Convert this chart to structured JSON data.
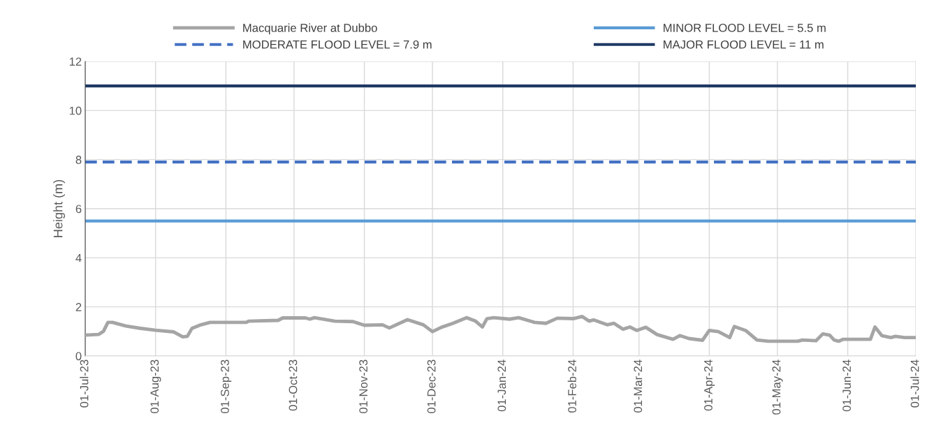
{
  "chart_data": {
    "type": "line",
    "ylabel": "Height (m)",
    "x": [
      "2023-07-01",
      "2023-07-07",
      "2023-07-09",
      "2023-07-11",
      "2023-07-13",
      "2023-07-19",
      "2023-07-25",
      "2023-08-01",
      "2023-08-09",
      "2023-08-13",
      "2023-08-15",
      "2023-08-17",
      "2023-08-21",
      "2023-08-25",
      "2023-09-10",
      "2023-09-11",
      "2023-09-24",
      "2023-09-26",
      "2023-10-06",
      "2023-10-08",
      "2023-10-10",
      "2023-10-19",
      "2023-10-27",
      "2023-11-01",
      "2023-11-09",
      "2023-11-12",
      "2023-11-20",
      "2023-11-27",
      "2023-12-01",
      "2023-12-05",
      "2023-12-10",
      "2023-12-16",
      "2023-12-20",
      "2023-12-23",
      "2023-12-25",
      "2023-12-28",
      "2024-01-04",
      "2024-01-08",
      "2024-01-15",
      "2024-01-20",
      "2024-01-25",
      "2024-02-01",
      "2024-02-05",
      "2024-02-08",
      "2024-02-10",
      "2024-02-16",
      "2024-02-19",
      "2024-02-23",
      "2024-02-26",
      "2024-02-29",
      "2024-03-04",
      "2024-03-09",
      "2024-03-16",
      "2024-03-19",
      "2024-03-23",
      "2024-03-29",
      "2024-04-01",
      "2024-04-05",
      "2024-04-10",
      "2024-04-12",
      "2024-04-17",
      "2024-04-22",
      "2024-04-27",
      "2024-05-10",
      "2024-05-12",
      "2024-05-18",
      "2024-05-21",
      "2024-05-24",
      "2024-05-26",
      "2024-05-28",
      "2024-05-30",
      "2024-06-11",
      "2024-06-13",
      "2024-06-16",
      "2024-06-20",
      "2024-06-22",
      "2024-06-26",
      "2024-07-01"
    ],
    "series": [
      {
        "name": "Macquarie River at Dubbo",
        "color": "#a5a5a5",
        "values": [
          0.85,
          0.88,
          1.0,
          1.37,
          1.37,
          1.22,
          1.13,
          1.05,
          0.98,
          0.78,
          0.8,
          1.12,
          1.27,
          1.37,
          1.37,
          1.42,
          1.45,
          1.55,
          1.55,
          1.5,
          1.56,
          1.42,
          1.4,
          1.25,
          1.27,
          1.14,
          1.48,
          1.27,
          0.99,
          1.17,
          1.33,
          1.56,
          1.42,
          1.18,
          1.52,
          1.56,
          1.5,
          1.56,
          1.37,
          1.33,
          1.54,
          1.52,
          1.61,
          1.42,
          1.47,
          1.27,
          1.33,
          1.09,
          1.18,
          1.04,
          1.17,
          0.87,
          0.68,
          0.83,
          0.71,
          0.64,
          1.04,
          0.99,
          0.75,
          1.2,
          1.04,
          0.65,
          0.6,
          0.6,
          0.65,
          0.62,
          0.9,
          0.85,
          0.65,
          0.6,
          0.68,
          0.68,
          1.18,
          0.83,
          0.75,
          0.8,
          0.75,
          0.75
        ]
      }
    ],
    "ref_lines": [
      {
        "axis": "y",
        "value": 5.5,
        "label": "MINOR FLOOD LEVEL = 5.5 m",
        "color": "#5b9bd5",
        "line_style": "solid"
      },
      {
        "axis": "y",
        "value": 7.9,
        "label": "MODERATE FLOOD LEVEL = 7.9 m",
        "color": "#4472c4",
        "line_style": "dashed"
      },
      {
        "axis": "y",
        "value": 11,
        "label": "MAJOR FLOOD LEVEL = 11 m",
        "color": "#1f3864",
        "line_style": "solid"
      }
    ],
    "xlim": [
      "2023-07-01",
      "2024-07-01"
    ],
    "xticks": [
      {
        "value": "2023-07-01",
        "label": "01-Jul-23"
      },
      {
        "value": "2023-08-01",
        "label": "01-Aug-23"
      },
      {
        "value": "2023-09-01",
        "label": "01-Sep-23"
      },
      {
        "value": "2023-10-01",
        "label": "01-Oct-23"
      },
      {
        "value": "2023-11-01",
        "label": "01-Nov-23"
      },
      {
        "value": "2023-12-01",
        "label": "01-Dec-23"
      },
      {
        "value": "2024-01-01",
        "label": "01-Jan-24"
      },
      {
        "value": "2024-02-01",
        "label": "01-Feb-24"
      },
      {
        "value": "2024-03-01",
        "label": "01-Mar-24"
      },
      {
        "value": "2024-04-01",
        "label": "01-Apr-24"
      },
      {
        "value": "2024-05-01",
        "label": "01-May-24"
      },
      {
        "value": "2024-06-01",
        "label": "01-Jun-24"
      },
      {
        "value": "2024-07-01",
        "label": "01-Jul-24"
      }
    ],
    "ylim": [
      0,
      12
    ],
    "yticks": [
      0,
      2,
      4,
      6,
      8,
      10,
      12
    ],
    "grid": true,
    "legend": "top",
    "line_style": "solid",
    "marker": "none"
  }
}
